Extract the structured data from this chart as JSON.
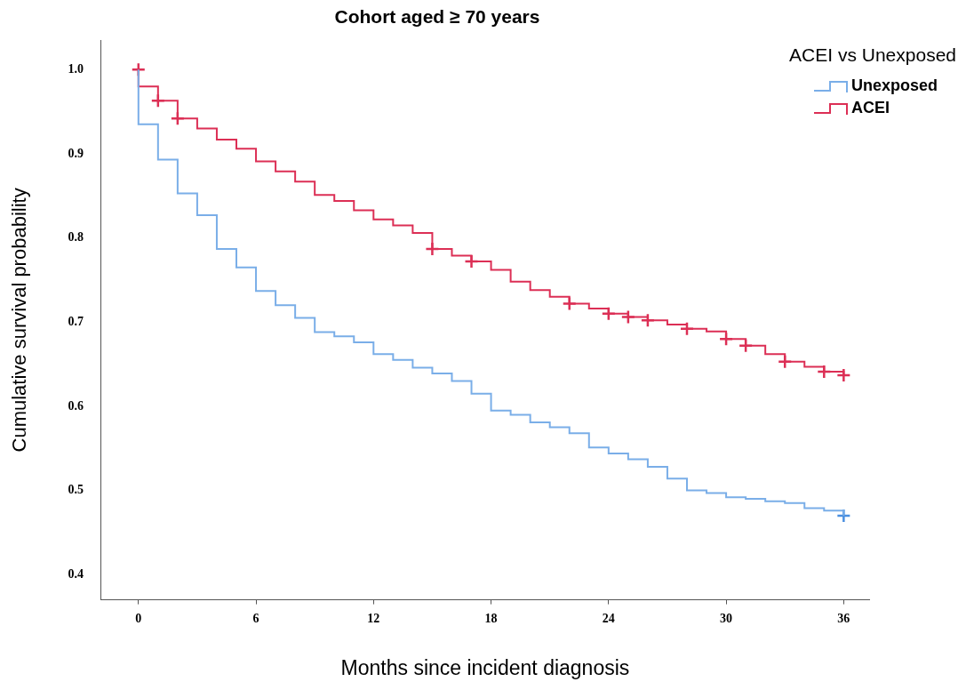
{
  "chart_data": {
    "type": "step",
    "title": "Cohort aged ≥ 70 years",
    "xlabel": "Months since incident diagnosis",
    "ylabel": "Cumulative survival probability",
    "legend_title": "ACEI vs Unexposed",
    "legend": "top right",
    "grid": false,
    "xlim": [
      -1.9,
      37.3
    ],
    "xticks": [
      0,
      6,
      12,
      18,
      24,
      30,
      36
    ],
    "ylim": [
      0.37,
      1.035
    ],
    "yticks": [
      {
        "value": 0.4,
        "label": "0.4"
      },
      {
        "value": 0.5,
        "label": "0.5"
      },
      {
        "value": 0.6,
        "label": "0.6"
      },
      {
        "value": 0.7,
        "label": "0.7"
      },
      {
        "value": 0.8,
        "label": "0.8"
      },
      {
        "value": 0.9,
        "label": "0.9"
      },
      {
        "value": 1,
        "label": "1.0"
      }
    ],
    "series": [
      {
        "name": "Unexposed",
        "color": "#7aaee8",
        "x": [
          0,
          0,
          1,
          2,
          3,
          4,
          5,
          6,
          7,
          8,
          9,
          10,
          11,
          12,
          13,
          14,
          15,
          16,
          17,
          18,
          19,
          20,
          21,
          22,
          23,
          24,
          25,
          26,
          27,
          28,
          29,
          30,
          31,
          32,
          33,
          34,
          35,
          36
        ],
        "values": [
          1.0,
          0.935,
          0.893,
          0.853,
          0.827,
          0.787,
          0.765,
          0.737,
          0.72,
          0.705,
          0.688,
          0.683,
          0.676,
          0.662,
          0.655,
          0.646,
          0.639,
          0.63,
          0.615,
          0.595,
          0.59,
          0.581,
          0.575,
          0.568,
          0.551,
          0.544,
          0.537,
          0.528,
          0.514,
          0.5,
          0.497,
          0.492,
          0.49,
          0.487,
          0.485,
          0.479,
          0.476,
          0.47
        ]
      },
      {
        "name": "ACEI",
        "color": "#dc2f55",
        "x": [
          0,
          0,
          1,
          2,
          3,
          4,
          5,
          6,
          7,
          8,
          9,
          10,
          11,
          12,
          13,
          14,
          15,
          16,
          17,
          18,
          19,
          20,
          21,
          22,
          23,
          24,
          25,
          26,
          27,
          28,
          29,
          30,
          31,
          32,
          33,
          34,
          35,
          36
        ],
        "values": [
          1.0,
          0.98,
          0.963,
          0.942,
          0.93,
          0.917,
          0.906,
          0.891,
          0.879,
          0.867,
          0.851,
          0.844,
          0.833,
          0.822,
          0.815,
          0.806,
          0.787,
          0.779,
          0.772,
          0.762,
          0.748,
          0.738,
          0.73,
          0.722,
          0.716,
          0.71,
          0.706,
          0.702,
          0.697,
          0.692,
          0.689,
          0.68,
          0.672,
          0.662,
          0.653,
          0.647,
          0.641,
          0.637
        ]
      },
      {
        "type": "scatter",
        "marker": "cross",
        "color": "#dc2f55",
        "x": [
          0,
          1,
          2,
          15,
          17,
          22,
          24,
          25,
          26,
          28,
          30,
          31,
          33,
          35,
          36
        ],
        "values": [
          1.0,
          0.963,
          0.942,
          0.787,
          0.772,
          0.722,
          0.71,
          0.706,
          0.702,
          0.692,
          0.68,
          0.672,
          0.653,
          0.641,
          0.637
        ]
      },
      {
        "type": "scatter",
        "marker": "cross",
        "color": "#4a8fe0",
        "x": [
          36
        ],
        "values": [
          0.47
        ]
      }
    ]
  }
}
